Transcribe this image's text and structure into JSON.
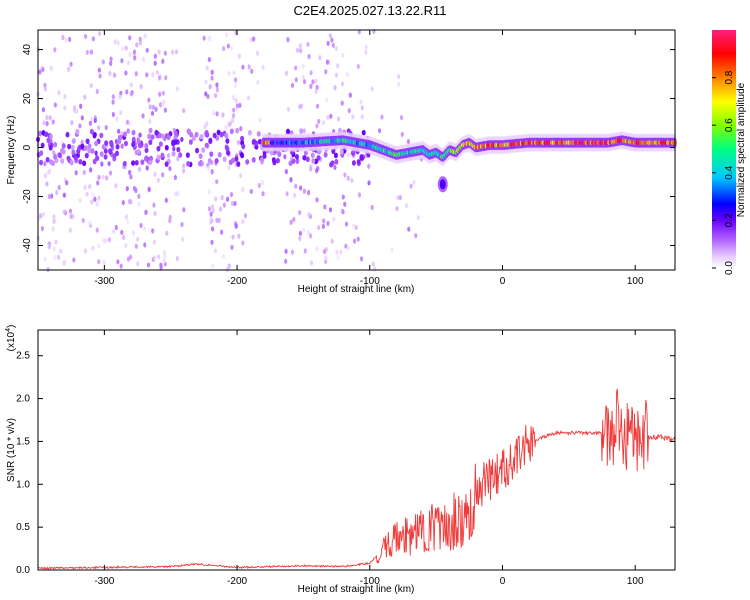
{
  "title": "C2E4.2025.027.13.22.R11",
  "colors": {
    "snr_line": "#ef3a3a",
    "axis": "#000000",
    "grid_bg": "#ffffff"
  },
  "chart_data": [
    {
      "type": "heatmap",
      "title": "C2E4.2025.027.13.22.R11",
      "xlabel": "Height of straight line (km)",
      "ylabel": "Frequency (Hz)",
      "xlim": [
        -350,
        130
      ],
      "ylim": [
        -50,
        48
      ],
      "x_ticks": [
        -300,
        -200,
        -100,
        0,
        100
      ],
      "y_ticks": [
        -40,
        -20,
        0,
        20,
        40
      ],
      "colorbar": {
        "label": "Normalized spectral amplitude",
        "range": [
          0.0,
          1.0
        ],
        "ticks": [
          "0.0",
          "0.2",
          "0.4",
          "0.6",
          "0.8"
        ],
        "palette": [
          "#ffffff",
          "#e6c8ff",
          "#b060ff",
          "#6a00ff",
          "#0000ff",
          "#00c8ff",
          "#00ff80",
          "#80ff00",
          "#ffff00",
          "#ff8000",
          "#ff0000",
          "#ff0080"
        ]
      },
      "ridge": {
        "description_points_x": [
          -175,
          -150,
          -120,
          -100,
          -80,
          -70,
          -60,
          -55,
          -50,
          -45,
          -40,
          -35,
          -30,
          -25,
          -20,
          -10,
          0,
          20,
          40,
          60,
          80,
          90,
          100,
          120,
          130
        ],
        "freq_y": [
          2,
          2,
          3,
          1,
          -3,
          -2,
          -1,
          -3,
          -2,
          -4,
          -1,
          -2,
          1,
          2,
          0,
          1,
          1,
          2,
          2,
          2,
          2,
          3,
          2,
          2,
          2
        ],
        "amplitude": [
          0.4,
          0.5,
          0.55,
          0.5,
          0.6,
          0.55,
          0.6,
          0.6,
          0.55,
          0.6,
          0.65,
          0.7,
          0.75,
          0.85,
          0.85,
          0.9,
          0.9,
          0.95,
          0.95,
          0.95,
          0.95,
          0.9,
          0.9,
          0.9,
          0.85
        ]
      },
      "blob": {
        "x": -45,
        "y": -15,
        "amplitude": 0.3
      }
    },
    {
      "type": "line",
      "xlabel": "Height of straight line (km)",
      "ylabel": "SNR (10 * v/v)",
      "ylabel_exponent": "(x10",
      "ylabel_exponent_power": "4",
      "xlim": [
        -350,
        130
      ],
      "ylim": [
        0,
        2.8
      ],
      "x_ticks": [
        -300,
        -200,
        -100,
        0,
        100
      ],
      "y_ticks": [
        "0.0",
        "0.5",
        "1.0",
        "1.5",
        "2.0",
        "2.5"
      ],
      "series": [
        {
          "x": [
            -350,
            -300,
            -250,
            -230,
            -200,
            -150,
            -120,
            -100,
            -90,
            -80,
            -70,
            -60,
            -50,
            -40,
            -30,
            -20,
            -15,
            -10,
            0,
            10,
            20,
            30,
            40,
            50,
            60,
            70,
            80,
            85,
            90,
            95,
            100,
            105,
            110,
            120,
            130
          ],
          "y": [
            0.02,
            0.03,
            0.04,
            0.07,
            0.03,
            0.05,
            0.04,
            0.08,
            0.25,
            0.35,
            0.4,
            0.5,
            0.5,
            0.55,
            0.6,
            0.9,
            1.0,
            1.05,
            1.15,
            1.35,
            1.48,
            1.55,
            1.6,
            1.6,
            1.6,
            1.6,
            1.6,
            1.7,
            1.65,
            1.6,
            1.6,
            1.6,
            1.55,
            1.55,
            1.52
          ]
        }
      ]
    }
  ]
}
